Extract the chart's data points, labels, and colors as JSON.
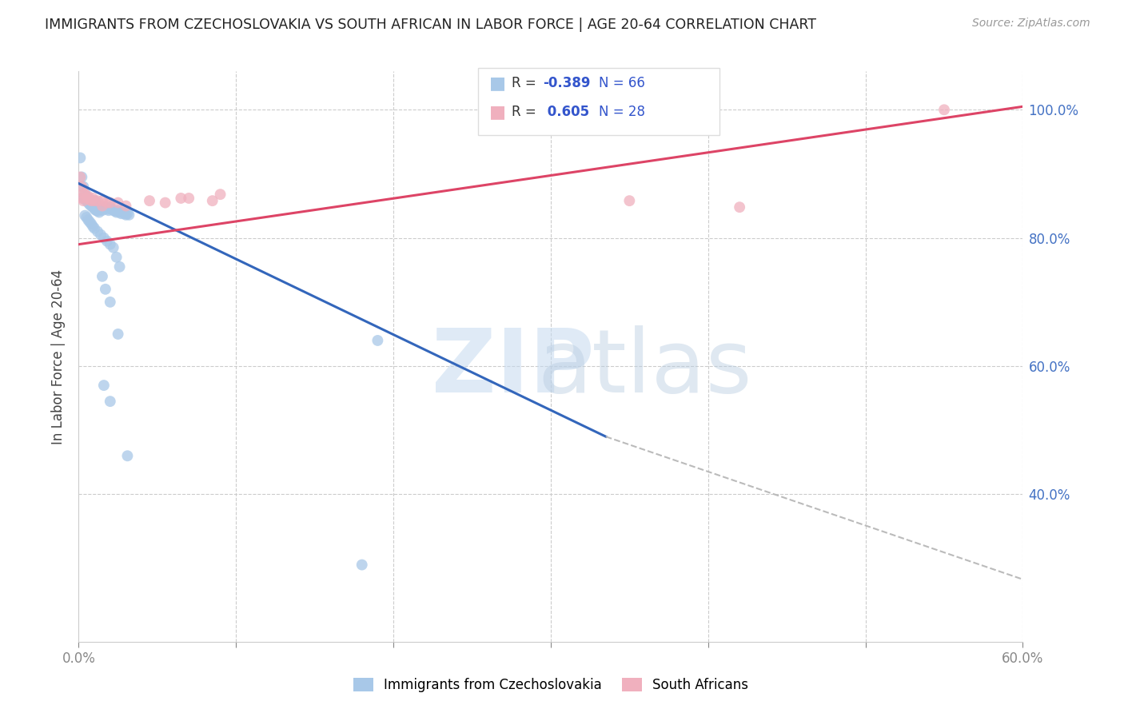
{
  "title": "IMMIGRANTS FROM CZECHOSLOVAKIA VS SOUTH AFRICAN IN LABOR FORCE | AGE 20-64 CORRELATION CHART",
  "source": "Source: ZipAtlas.com",
  "ylabel": "In Labor Force | Age 20-64",
  "xlim": [
    0.0,
    0.6
  ],
  "ylim": [
    0.17,
    1.06
  ],
  "blue_color": "#a8c8e8",
  "pink_color": "#f0b0be",
  "blue_line_color": "#3366bb",
  "pink_line_color": "#dd4466",
  "dashed_line_color": "#bbbbbb",
  "blue_dots": [
    [
      0.001,
      0.925
    ],
    [
      0.002,
      0.895
    ],
    [
      0.003,
      0.88
    ],
    [
      0.004,
      0.87
    ],
    [
      0.005,
      0.865
    ],
    [
      0.003,
      0.862
    ],
    [
      0.004,
      0.86
    ],
    [
      0.005,
      0.858
    ],
    [
      0.006,
      0.86
    ],
    [
      0.007,
      0.857
    ],
    [
      0.006,
      0.855
    ],
    [
      0.007,
      0.852
    ],
    [
      0.008,
      0.855
    ],
    [
      0.009,
      0.853
    ],
    [
      0.01,
      0.858
    ],
    [
      0.011,
      0.856
    ],
    [
      0.008,
      0.85
    ],
    [
      0.009,
      0.848
    ],
    [
      0.01,
      0.845
    ],
    [
      0.011,
      0.843
    ],
    [
      0.012,
      0.848
    ],
    [
      0.013,
      0.846
    ],
    [
      0.012,
      0.842
    ],
    [
      0.013,
      0.84
    ],
    [
      0.014,
      0.845
    ],
    [
      0.015,
      0.843
    ],
    [
      0.016,
      0.845
    ],
    [
      0.017,
      0.848
    ],
    [
      0.018,
      0.845
    ],
    [
      0.019,
      0.843
    ],
    [
      0.02,
      0.848
    ],
    [
      0.021,
      0.845
    ],
    [
      0.022,
      0.843
    ],
    [
      0.023,
      0.842
    ],
    [
      0.024,
      0.84
    ],
    [
      0.025,
      0.843
    ],
    [
      0.026,
      0.84
    ],
    [
      0.027,
      0.838
    ],
    [
      0.028,
      0.84
    ],
    [
      0.029,
      0.838
    ],
    [
      0.03,
      0.836
    ],
    [
      0.031,
      0.838
    ],
    [
      0.032,
      0.836
    ],
    [
      0.004,
      0.835
    ],
    [
      0.005,
      0.832
    ],
    [
      0.006,
      0.828
    ],
    [
      0.007,
      0.825
    ],
    [
      0.008,
      0.822
    ],
    [
      0.009,
      0.818
    ],
    [
      0.01,
      0.815
    ],
    [
      0.012,
      0.81
    ],
    [
      0.014,
      0.805
    ],
    [
      0.016,
      0.8
    ],
    [
      0.018,
      0.795
    ],
    [
      0.02,
      0.79
    ],
    [
      0.022,
      0.785
    ],
    [
      0.024,
      0.77
    ],
    [
      0.026,
      0.755
    ],
    [
      0.015,
      0.74
    ],
    [
      0.017,
      0.72
    ],
    [
      0.02,
      0.7
    ],
    [
      0.025,
      0.65
    ],
    [
      0.016,
      0.57
    ],
    [
      0.02,
      0.545
    ],
    [
      0.19,
      0.64
    ],
    [
      0.031,
      0.46
    ],
    [
      0.18,
      0.29
    ]
  ],
  "pink_dots": [
    [
      0.001,
      0.895
    ],
    [
      0.002,
      0.88
    ],
    [
      0.003,
      0.87
    ],
    [
      0.002,
      0.862
    ],
    [
      0.003,
      0.858
    ],
    [
      0.004,
      0.868
    ],
    [
      0.005,
      0.862
    ],
    [
      0.006,
      0.865
    ],
    [
      0.007,
      0.86
    ],
    [
      0.008,
      0.858
    ],
    [
      0.009,
      0.862
    ],
    [
      0.01,
      0.858
    ],
    [
      0.012,
      0.858
    ],
    [
      0.015,
      0.858
    ],
    [
      0.018,
      0.855
    ],
    [
      0.015,
      0.85
    ],
    [
      0.02,
      0.855
    ],
    [
      0.025,
      0.855
    ],
    [
      0.03,
      0.85
    ],
    [
      0.045,
      0.858
    ],
    [
      0.055,
      0.855
    ],
    [
      0.065,
      0.862
    ],
    [
      0.07,
      0.862
    ],
    [
      0.085,
      0.858
    ],
    [
      0.09,
      0.868
    ],
    [
      0.35,
      0.858
    ],
    [
      0.42,
      0.848
    ],
    [
      0.55,
      1.0
    ]
  ],
  "blue_line": [
    [
      0.0,
      0.885
    ],
    [
      0.335,
      0.49
    ]
  ],
  "pink_line": [
    [
      0.0,
      0.79
    ],
    [
      0.6,
      1.005
    ]
  ],
  "dashed_line": [
    [
      0.335,
      0.49
    ],
    [
      0.68,
      0.2
    ]
  ]
}
